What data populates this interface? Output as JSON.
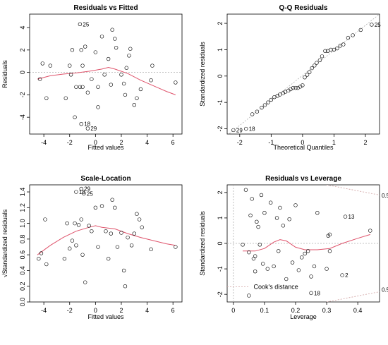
{
  "chart_data": [
    {
      "type": "scatter",
      "title": "Residuals vs Fitted",
      "xlabel": "Fitted values",
      "ylabel": "Residuals",
      "xlim": [
        -5.1,
        6.7
      ],
      "ylim": [
        -5.5,
        5.2
      ],
      "xticks": [
        -4,
        -2,
        0,
        2,
        4,
        6
      ],
      "yticks": [
        -4,
        -2,
        0,
        2,
        4
      ],
      "reference_line_y": 0,
      "points": [
        {
          "x": -4.3,
          "y": -0.6
        },
        {
          "x": -4.1,
          "y": 0.8
        },
        {
          "x": -3.8,
          "y": -2.3
        },
        {
          "x": -3.5,
          "y": 0.6
        },
        {
          "x": -2.3,
          "y": -2.3
        },
        {
          "x": -2.0,
          "y": 0.6
        },
        {
          "x": -1.9,
          "y": -0.2
        },
        {
          "x": -1.8,
          "y": 2.0
        },
        {
          "x": -1.6,
          "y": -4.0
        },
        {
          "x": -1.5,
          "y": -1.3
        },
        {
          "x": -1.2,
          "y": -1.3
        },
        {
          "x": -1.1,
          "y": 2.0
        },
        {
          "x": -1.0,
          "y": 0.6
        },
        {
          "x": -0.8,
          "y": 2.3
        },
        {
          "x": -1.0,
          "y": -1.3
        },
        {
          "x": -0.6,
          "y": -1.8
        },
        {
          "x": -0.3,
          "y": -0.6
        },
        {
          "x": 0.0,
          "y": 1.8
        },
        {
          "x": 0.2,
          "y": -1.3
        },
        {
          "x": 0.2,
          "y": -3.1
        },
        {
          "x": 0.5,
          "y": 3.2
        },
        {
          "x": 0.7,
          "y": -0.2
        },
        {
          "x": 1.0,
          "y": 1.2
        },
        {
          "x": 1.2,
          "y": -1.1
        },
        {
          "x": 1.3,
          "y": 3.8
        },
        {
          "x": 1.5,
          "y": 3.0
        },
        {
          "x": 1.6,
          "y": 2.2
        },
        {
          "x": 2.0,
          "y": -0.2
        },
        {
          "x": 2.2,
          "y": -1.0
        },
        {
          "x": 2.3,
          "y": -2.0
        },
        {
          "x": 2.4,
          "y": 0.4
        },
        {
          "x": 2.6,
          "y": 1.5
        },
        {
          "x": 2.7,
          "y": 2.1
        },
        {
          "x": 3.0,
          "y": -2.9
        },
        {
          "x": 3.2,
          "y": -2.3
        },
        {
          "x": 3.5,
          "y": -1.5
        },
        {
          "x": 4.3,
          "y": -0.7
        },
        {
          "x": 4.4,
          "y": 0.6
        },
        {
          "x": 6.2,
          "y": -0.9
        },
        {
          "x": -1.2,
          "y": 4.3,
          "label": "25"
        },
        {
          "x": -1.1,
          "y": -4.6,
          "label": "18"
        },
        {
          "x": -0.6,
          "y": -5.0,
          "label": "29",
          "hollow": false
        }
      ],
      "smoother": [
        {
          "x": -4.5,
          "y": -0.6
        },
        {
          "x": -3.5,
          "y": -0.3
        },
        {
          "x": -2.5,
          "y": -0.15
        },
        {
          "x": -1.5,
          "y": -0.05
        },
        {
          "x": -0.5,
          "y": 0.1
        },
        {
          "x": 0.5,
          "y": 0.3
        },
        {
          "x": 1.0,
          "y": 0.45
        },
        {
          "x": 1.5,
          "y": 0.3
        },
        {
          "x": 2.5,
          "y": -0.1
        },
        {
          "x": 3.5,
          "y": -0.7
        },
        {
          "x": 4.5,
          "y": -1.2
        },
        {
          "x": 5.5,
          "y": -1.7
        },
        {
          "x": 6.2,
          "y": -2.0
        }
      ]
    },
    {
      "type": "scatter",
      "title": "Q-Q Residuals",
      "xlabel": "Theoretical Quantiles",
      "ylabel": "Standardized residuals",
      "xlim": [
        -2.4,
        2.45
      ],
      "ylim": [
        -2.2,
        2.35
      ],
      "xticks": [
        -2,
        -1,
        0,
        1,
        2
      ],
      "yticks": [
        -2,
        -1,
        0,
        1,
        2
      ],
      "reference_line": {
        "from": [
          -2.4,
          -2.25
        ],
        "to": [
          2.45,
          2.35
        ]
      },
      "points": [
        {
          "x": -2.2,
          "y": -2.05,
          "label": "29"
        },
        {
          "x": -1.8,
          "y": -2.0,
          "label": "18"
        },
        {
          "x": -1.6,
          "y": -1.45
        },
        {
          "x": -1.45,
          "y": -1.35
        },
        {
          "x": -1.3,
          "y": -1.2
        },
        {
          "x": -1.2,
          "y": -1.1
        },
        {
          "x": -1.1,
          "y": -1.0
        },
        {
          "x": -1.0,
          "y": -0.9
        },
        {
          "x": -0.9,
          "y": -0.8
        },
        {
          "x": -0.8,
          "y": -0.75
        },
        {
          "x": -0.72,
          "y": -0.7
        },
        {
          "x": -0.62,
          "y": -0.65
        },
        {
          "x": -0.55,
          "y": -0.6
        },
        {
          "x": -0.45,
          "y": -0.55
        },
        {
          "x": -0.38,
          "y": -0.5
        },
        {
          "x": -0.3,
          "y": -0.45
        },
        {
          "x": -0.22,
          "y": -0.45
        },
        {
          "x": -0.15,
          "y": -0.45
        },
        {
          "x": -0.07,
          "y": -0.4
        },
        {
          "x": 0.0,
          "y": -0.35
        },
        {
          "x": 0.07,
          "y": -0.05
        },
        {
          "x": 0.15,
          "y": 0.05
        },
        {
          "x": 0.22,
          "y": 0.15
        },
        {
          "x": 0.3,
          "y": 0.3
        },
        {
          "x": 0.38,
          "y": 0.4
        },
        {
          "x": 0.45,
          "y": 0.5
        },
        {
          "x": 0.55,
          "y": 0.6
        },
        {
          "x": 0.62,
          "y": 0.75
        },
        {
          "x": 0.72,
          "y": 0.95
        },
        {
          "x": 0.8,
          "y": 0.95
        },
        {
          "x": 0.9,
          "y": 1.0
        },
        {
          "x": 1.0,
          "y": 1.0
        },
        {
          "x": 1.1,
          "y": 1.05
        },
        {
          "x": 1.2,
          "y": 1.15
        },
        {
          "x": 1.3,
          "y": 1.2
        },
        {
          "x": 1.45,
          "y": 1.45
        },
        {
          "x": 1.6,
          "y": 1.55
        },
        {
          "x": 1.85,
          "y": 1.75
        },
        {
          "x": 2.2,
          "y": 1.95,
          "label": "25"
        }
      ]
    },
    {
      "type": "scatter",
      "title": "Scale-Location",
      "xlabel": "Fitted values",
      "ylabel": "√Standardized residuals",
      "xlim": [
        -5.1,
        6.7
      ],
      "ylim": [
        0.0,
        1.49
      ],
      "xticks": [
        -4,
        -2,
        0,
        2,
        4,
        6
      ],
      "yticks": [
        0.0,
        0.2,
        0.4,
        0.6,
        0.8,
        1.0,
        1.2,
        1.4
      ],
      "points": [
        {
          "x": -4.4,
          "y": 0.55
        },
        {
          "x": -4.2,
          "y": 0.62
        },
        {
          "x": -3.9,
          "y": 1.05
        },
        {
          "x": -3.8,
          "y": 0.48
        },
        {
          "x": -2.4,
          "y": 0.55
        },
        {
          "x": -2.2,
          "y": 1.0
        },
        {
          "x": -2.0,
          "y": 0.68
        },
        {
          "x": -1.8,
          "y": 0.78
        },
        {
          "x": -1.6,
          "y": 1.0
        },
        {
          "x": -1.5,
          "y": 0.72
        },
        {
          "x": -1.3,
          "y": 0.98
        },
        {
          "x": -1.1,
          "y": 1.05
        },
        {
          "x": -1.0,
          "y": 0.6
        },
        {
          "x": -0.8,
          "y": 0.25
        },
        {
          "x": -0.5,
          "y": 0.97
        },
        {
          "x": -0.3,
          "y": 0.9
        },
        {
          "x": 0.0,
          "y": 1.2
        },
        {
          "x": 0.2,
          "y": 0.7
        },
        {
          "x": 0.5,
          "y": 1.22
        },
        {
          "x": 0.8,
          "y": 0.9
        },
        {
          "x": 1.0,
          "y": 0.55
        },
        {
          "x": 1.2,
          "y": 0.87
        },
        {
          "x": 1.3,
          "y": 1.3
        },
        {
          "x": 1.5,
          "y": 1.2
        },
        {
          "x": 1.7,
          "y": 0.7
        },
        {
          "x": 2.0,
          "y": 0.88
        },
        {
          "x": 2.2,
          "y": 0.4
        },
        {
          "x": 2.3,
          "y": 0.2
        },
        {
          "x": 2.5,
          "y": 0.82
        },
        {
          "x": 2.8,
          "y": 0.72
        },
        {
          "x": 3.0,
          "y": 0.87
        },
        {
          "x": 3.2,
          "y": 1.12
        },
        {
          "x": 3.4,
          "y": 1.05
        },
        {
          "x": 3.6,
          "y": 0.95
        },
        {
          "x": 4.3,
          "y": 0.67
        },
        {
          "x": 6.2,
          "y": 0.7
        },
        {
          "x": -1.1,
          "y": 1.44,
          "label": "29"
        },
        {
          "x": -1.5,
          "y": 1.4,
          "label": "18"
        },
        {
          "x": -0.9,
          "y": 1.38,
          "label": "25"
        }
      ],
      "smoother": [
        {
          "x": -4.5,
          "y": 0.6
        },
        {
          "x": -3.5,
          "y": 0.72
        },
        {
          "x": -2.5,
          "y": 0.82
        },
        {
          "x": -1.5,
          "y": 0.9
        },
        {
          "x": -0.5,
          "y": 0.95
        },
        {
          "x": 0.0,
          "y": 0.97
        },
        {
          "x": 0.5,
          "y": 0.95
        },
        {
          "x": 1.5,
          "y": 0.93
        },
        {
          "x": 2.5,
          "y": 0.87
        },
        {
          "x": 3.5,
          "y": 0.82
        },
        {
          "x": 4.5,
          "y": 0.78
        },
        {
          "x": 5.5,
          "y": 0.74
        },
        {
          "x": 6.2,
          "y": 0.72
        }
      ]
    },
    {
      "type": "scatter",
      "title": "Residuals vs Leverage",
      "xlabel": "Leverage",
      "ylabel": "Standardized residuals",
      "xlim": [
        -0.02,
        0.47
      ],
      "ylim": [
        -2.3,
        2.3
      ],
      "xticks": [
        0.0,
        0.1,
        0.2,
        0.3,
        0.4
      ],
      "yticks": [
        -2,
        -1,
        0,
        1,
        2
      ],
      "reference_line_y": 0,
      "annotation": "Cook's distance",
      "contour_labels": [
        {
          "label": "0.5",
          "y": 1.8
        },
        {
          "label": "0.5",
          "y": -1.9
        }
      ],
      "points": [
        {
          "x": 0.03,
          "y": -0.05
        },
        {
          "x": 0.04,
          "y": 2.1
        },
        {
          "x": 0.05,
          "y": -0.35
        },
        {
          "x": 0.05,
          "y": -2.05
        },
        {
          "x": 0.055,
          "y": 1.1
        },
        {
          "x": 0.06,
          "y": 1.75
        },
        {
          "x": 0.065,
          "y": -0.6
        },
        {
          "x": 0.07,
          "y": -0.5
        },
        {
          "x": 0.075,
          "y": 0.85
        },
        {
          "x": 0.08,
          "y": 0.65
        },
        {
          "x": 0.085,
          "y": -0.05
        },
        {
          "x": 0.09,
          "y": 1.9
        },
        {
          "x": 0.095,
          "y": -0.8
        },
        {
          "x": 0.1,
          "y": 1.2
        },
        {
          "x": 0.11,
          "y": -1.0
        },
        {
          "x": 0.12,
          "y": 1.6
        },
        {
          "x": 0.13,
          "y": -0.9
        },
        {
          "x": 0.14,
          "y": 1.0
        },
        {
          "x": 0.145,
          "y": -0.3
        },
        {
          "x": 0.15,
          "y": 1.4
        },
        {
          "x": 0.16,
          "y": 0.7
        },
        {
          "x": 0.17,
          "y": -1.4
        },
        {
          "x": 0.18,
          "y": 0.95
        },
        {
          "x": 0.19,
          "y": -0.75
        },
        {
          "x": 0.2,
          "y": 1.5
        },
        {
          "x": 0.21,
          "y": -1.05
        },
        {
          "x": 0.22,
          "y": -0.55
        },
        {
          "x": 0.23,
          "y": -0.4
        },
        {
          "x": 0.24,
          "y": -0.3
        },
        {
          "x": 0.25,
          "y": -1.3
        },
        {
          "x": 0.26,
          "y": -0.9
        },
        {
          "x": 0.27,
          "y": 1.2
        },
        {
          "x": 0.3,
          "y": -1.0
        },
        {
          "x": 0.305,
          "y": 0.3
        },
        {
          "x": 0.31,
          "y": 0.35
        },
        {
          "x": 0.31,
          "y": -0.3
        },
        {
          "x": 0.07,
          "y": -1.1
        },
        {
          "x": 0.44,
          "y": 0.5
        },
        {
          "x": 0.36,
          "y": 1.05,
          "label": "13"
        },
        {
          "x": 0.35,
          "y": -1.25,
          "label": "2"
        },
        {
          "x": 0.25,
          "y": -1.95,
          "label": "18"
        }
      ],
      "smoother": [
        {
          "x": 0.03,
          "y": -0.3
        },
        {
          "x": 0.07,
          "y": -0.3
        },
        {
          "x": 0.1,
          "y": -0.2
        },
        {
          "x": 0.13,
          "y": 0.05
        },
        {
          "x": 0.15,
          "y": 0.15
        },
        {
          "x": 0.17,
          "y": 0.1
        },
        {
          "x": 0.2,
          "y": -0.15
        },
        {
          "x": 0.23,
          "y": -0.25
        },
        {
          "x": 0.27,
          "y": -0.25
        },
        {
          "x": 0.31,
          "y": -0.2
        },
        {
          "x": 0.35,
          "y": 0.0
        },
        {
          "x": 0.4,
          "y": 0.2
        },
        {
          "x": 0.44,
          "y": 0.35
        }
      ]
    }
  ],
  "colors": {
    "smoother": "#df536b",
    "reference": "#b0b0b0",
    "points": "#000000",
    "contour": "#d0a0a0"
  }
}
